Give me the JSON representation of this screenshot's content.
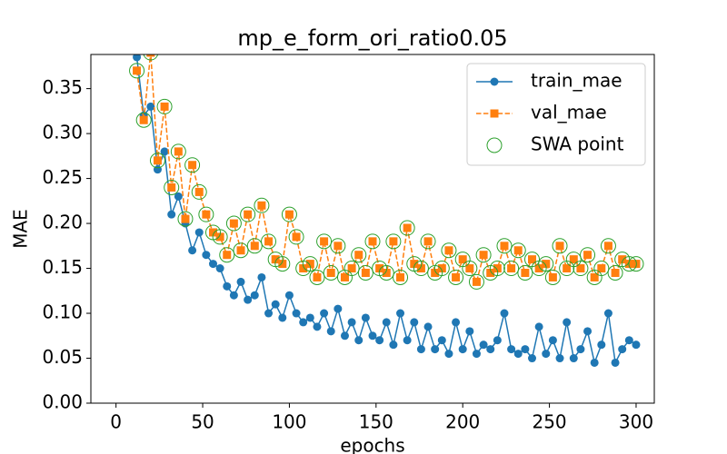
{
  "chart_data": {
    "type": "line",
    "title": "mp_e_form_ori_ratio0.05",
    "xlabel": "epochs",
    "ylabel": "MAE",
    "x": [
      12,
      16,
      20,
      24,
      28,
      32,
      36,
      40,
      44,
      48,
      52,
      56,
      60,
      64,
      68,
      72,
      76,
      80,
      84,
      88,
      92,
      96,
      100,
      104,
      108,
      112,
      116,
      120,
      124,
      128,
      132,
      136,
      140,
      144,
      148,
      152,
      156,
      160,
      164,
      168,
      172,
      176,
      180,
      184,
      188,
      192,
      196,
      200,
      204,
      208,
      212,
      216,
      220,
      224,
      228,
      232,
      236,
      240,
      244,
      248,
      252,
      256,
      260,
      264,
      268,
      272,
      276,
      280,
      284,
      288,
      292,
      296,
      300
    ],
    "series": [
      {
        "name": "train_mae",
        "color": "#1f77b4",
        "marker": "circle",
        "linestyle": "solid",
        "values": [
          0.385,
          0.32,
          0.33,
          0.26,
          0.28,
          0.21,
          0.23,
          0.2,
          0.17,
          0.19,
          0.165,
          0.155,
          0.15,
          0.13,
          0.12,
          0.135,
          0.115,
          0.12,
          0.14,
          0.1,
          0.11,
          0.095,
          0.12,
          0.1,
          0.09,
          0.095,
          0.085,
          0.1,
          0.08,
          0.105,
          0.075,
          0.09,
          0.07,
          0.095,
          0.075,
          0.07,
          0.09,
          0.065,
          0.1,
          0.07,
          0.09,
          0.06,
          0.085,
          0.06,
          0.07,
          0.055,
          0.09,
          0.06,
          0.08,
          0.055,
          0.065,
          0.06,
          0.07,
          0.1,
          0.06,
          0.055,
          0.06,
          0.05,
          0.085,
          0.055,
          0.07,
          0.05,
          0.09,
          0.05,
          0.06,
          0.08,
          0.045,
          0.065,
          0.1,
          0.045,
          0.06,
          0.07,
          0.065
        ]
      },
      {
        "name": "val_mae",
        "color": "#ff7f0e",
        "marker": "square",
        "linestyle": "dashed",
        "values": [
          0.37,
          0.315,
          0.39,
          0.27,
          0.33,
          0.24,
          0.28,
          0.205,
          0.265,
          0.235,
          0.21,
          0.19,
          0.185,
          0.165,
          0.2,
          0.17,
          0.21,
          0.175,
          0.22,
          0.18,
          0.16,
          0.155,
          0.21,
          0.185,
          0.15,
          0.155,
          0.14,
          0.18,
          0.145,
          0.175,
          0.14,
          0.15,
          0.165,
          0.145,
          0.18,
          0.15,
          0.145,
          0.18,
          0.14,
          0.195,
          0.155,
          0.15,
          0.18,
          0.145,
          0.15,
          0.17,
          0.14,
          0.16,
          0.15,
          0.135,
          0.165,
          0.145,
          0.15,
          0.175,
          0.15,
          0.17,
          0.145,
          0.16,
          0.15,
          0.155,
          0.14,
          0.175,
          0.15,
          0.16,
          0.15,
          0.165,
          0.14,
          0.15,
          0.175,
          0.145,
          0.16,
          0.155,
          0.155
        ]
      },
      {
        "name": "SWA point",
        "color": "#2ca02c",
        "marker": "hollow-circle",
        "linestyle": "none",
        "values": [
          0.37,
          0.315,
          0.39,
          0.27,
          0.33,
          0.24,
          0.28,
          0.205,
          0.265,
          0.235,
          0.21,
          0.19,
          0.185,
          0.165,
          0.2,
          0.17,
          0.21,
          0.175,
          0.22,
          0.18,
          0.16,
          0.155,
          0.21,
          0.185,
          0.15,
          0.155,
          0.14,
          0.18,
          0.145,
          0.175,
          0.14,
          0.15,
          0.165,
          0.145,
          0.18,
          0.15,
          0.145,
          0.18,
          0.14,
          0.195,
          0.155,
          0.15,
          0.18,
          0.145,
          0.15,
          0.17,
          0.14,
          0.16,
          0.15,
          0.135,
          0.165,
          0.145,
          0.15,
          0.175,
          0.15,
          0.17,
          0.145,
          0.16,
          0.15,
          0.155,
          0.14,
          0.175,
          0.15,
          0.16,
          0.15,
          0.165,
          0.14,
          0.15,
          0.175,
          0.145,
          0.16,
          0.155,
          0.155
        ]
      }
    ],
    "xlim": [
      -14.5,
      310.5
    ],
    "xticks": [
      0,
      50,
      100,
      150,
      200,
      250,
      300
    ],
    "ylim": [
      0,
      0.388
    ],
    "yticks": [
      {
        "value": 0,
        "label": "0.00"
      },
      {
        "value": 0.05,
        "label": "0.05"
      },
      {
        "value": 0.1,
        "label": "0.10"
      },
      {
        "value": 0.15,
        "label": "0.15"
      },
      {
        "value": 0.2,
        "label": "0.20"
      },
      {
        "value": 0.25,
        "label": "0.25"
      },
      {
        "value": 0.3,
        "label": "0.30"
      },
      {
        "value": 0.35,
        "label": "0.35"
      }
    ],
    "legend": "upper right",
    "grid": false
  }
}
